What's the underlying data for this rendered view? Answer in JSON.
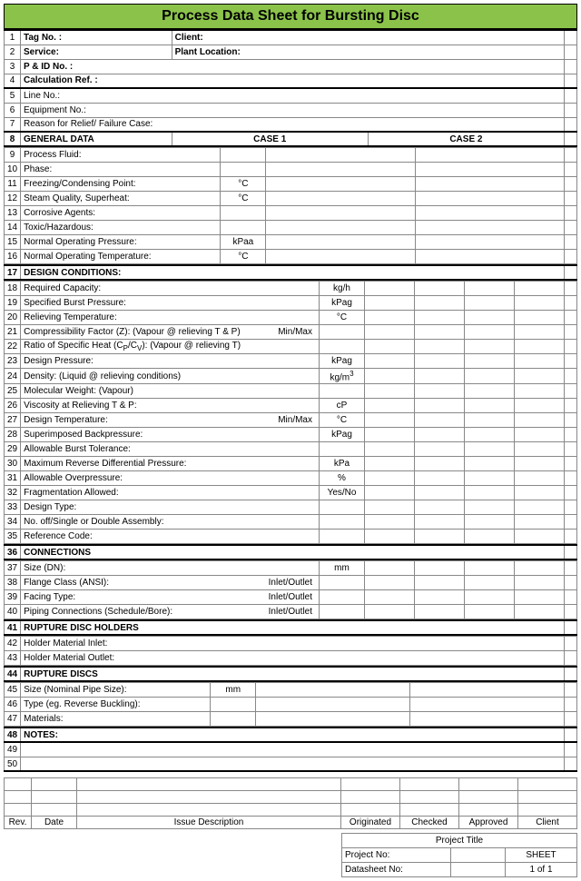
{
  "title": "Process Data Sheet for Bursting Disc",
  "header_color": "#8bc34a",
  "header": {
    "tag_no": "Tag No. :",
    "client": "Client:",
    "service": "Service:",
    "plant_location": "Plant Location:",
    "pid_no": "P & ID No. :",
    "calc_ref": "Calculation Ref. :"
  },
  "rows": [
    {
      "n": "5",
      "label": "Line No.:"
    },
    {
      "n": "6",
      "label": "Equipment No.:"
    },
    {
      "n": "7",
      "label": "Reason for Relief/ Failure Case:"
    }
  ],
  "section_general": {
    "n": "8",
    "label": "GENERAL DATA",
    "case1": "CASE 1",
    "case2": "CASE 2"
  },
  "general": [
    {
      "n": "9",
      "label": "Process Fluid:",
      "unit": ""
    },
    {
      "n": "10",
      "label": "Phase:",
      "unit": ""
    },
    {
      "n": "11",
      "label": "Freezing/Condensing Point:",
      "unit": "°C"
    },
    {
      "n": "12",
      "label": "Steam Quality, Superheat:",
      "unit": "°C"
    },
    {
      "n": "13",
      "label": "Corrosive Agents:",
      "unit": ""
    },
    {
      "n": "14",
      "label": "Toxic/Hazardous:",
      "unit": ""
    },
    {
      "n": "15",
      "label": "Normal Operating Pressure:",
      "unit": "kPaa"
    },
    {
      "n": "16",
      "label": "Normal Operating Temperature:",
      "unit": "°C"
    }
  ],
  "section_design": {
    "n": "17",
    "label": "DESIGN CONDITIONS:"
  },
  "design": [
    {
      "n": "18",
      "label": "Required Capacity:",
      "unit": "kg/h",
      "suffix": ""
    },
    {
      "n": "19",
      "label": "Specified Burst Pressure:",
      "unit": "kPag",
      "suffix": ""
    },
    {
      "n": "20",
      "label": "Relieving Temperature:",
      "unit": "°C",
      "suffix": ""
    },
    {
      "n": "21",
      "label": "Compressibility Factor (Z): (Vapour @ relieving T & P)",
      "unit": "",
      "suffix": "Min/Max"
    },
    {
      "n": "22",
      "label": "Ratio of Specific Heat (C",
      "unit": "",
      "suffix": "",
      "special": "cpcv"
    },
    {
      "n": "23",
      "label": "Design Pressure:",
      "unit": "kPag",
      "suffix": ""
    },
    {
      "n": "24",
      "label": "Density: (Liquid @ relieving conditions)",
      "unit": "kg/m",
      "suffix": "",
      "sup": "3"
    },
    {
      "n": "25",
      "label": "Molecular Weight: (Vapour)",
      "unit": "",
      "suffix": ""
    },
    {
      "n": "26",
      "label": "Viscosity at Relieving T & P:",
      "unit": "cP",
      "suffix": ""
    },
    {
      "n": "27",
      "label": "Design Temperature:",
      "unit": "°C",
      "suffix": "Min/Max"
    },
    {
      "n": "28",
      "label": "Superimposed Backpressure:",
      "unit": "kPag",
      "suffix": ""
    },
    {
      "n": "29",
      "label": "Allowable Burst Tolerance:",
      "unit": "",
      "suffix": ""
    },
    {
      "n": "30",
      "label": "Maximum Reverse Differential Pressure:",
      "unit": "kPa",
      "suffix": ""
    },
    {
      "n": "31",
      "label": "Allowable Overpressure:",
      "unit": "%",
      "suffix": ""
    },
    {
      "n": "32",
      "label": "Fragmentation Allowed:",
      "unit": "Yes/No",
      "suffix": ""
    },
    {
      "n": "33",
      "label": "Design Type:",
      "unit": "",
      "suffix": ""
    },
    {
      "n": "34",
      "label": "No. off/Single or Double Assembly:",
      "unit": "",
      "suffix": ""
    },
    {
      "n": "35",
      "label": "Reference Code:",
      "unit": "",
      "suffix": ""
    }
  ],
  "section_conn": {
    "n": "36",
    "label": "CONNECTIONS"
  },
  "conn": [
    {
      "n": "37",
      "label": "Size (DN):",
      "unit": "mm",
      "suffix": ""
    },
    {
      "n": "38",
      "label": "Flange Class (ANSI):",
      "unit": "",
      "suffix": "Inlet/Outlet"
    },
    {
      "n": "39",
      "label": "Facing Type:",
      "unit": "",
      "suffix": "Inlet/Outlet"
    },
    {
      "n": "40",
      "label": "Piping Connections (Schedule/Bore):",
      "unit": "",
      "suffix": "Inlet/Outlet"
    }
  ],
  "section_holders": {
    "n": "41",
    "label": "RUPTURE DISC HOLDERS"
  },
  "holders": [
    {
      "n": "42",
      "label": "Holder Material Inlet:"
    },
    {
      "n": "43",
      "label": "Holder Material Outlet:"
    }
  ],
  "section_discs": {
    "n": "44",
    "label": "RUPTURE DISCS"
  },
  "discs": [
    {
      "n": "45",
      "label": "Size (Nominal Pipe Size):",
      "unit": "mm"
    },
    {
      "n": "46",
      "label": "Type (eg. Reverse Buckling):",
      "unit": ""
    },
    {
      "n": "47",
      "label": "Materials:",
      "unit": ""
    }
  ],
  "section_notes": {
    "n": "48",
    "label": "NOTES:"
  },
  "notes": [
    {
      "n": "49"
    },
    {
      "n": "50"
    }
  ],
  "rev_header": {
    "rev": "Rev.",
    "date": "Date",
    "issue": "Issue Description",
    "orig": "Originated",
    "checked": "Checked",
    "approved": "Approved",
    "client": "Client"
  },
  "footer": {
    "project_title": "Project Title",
    "project_no": "Project No:",
    "sheet": "SHEET",
    "datasheet_no": "Datasheet No:",
    "sheet_val": "1   of   1"
  }
}
